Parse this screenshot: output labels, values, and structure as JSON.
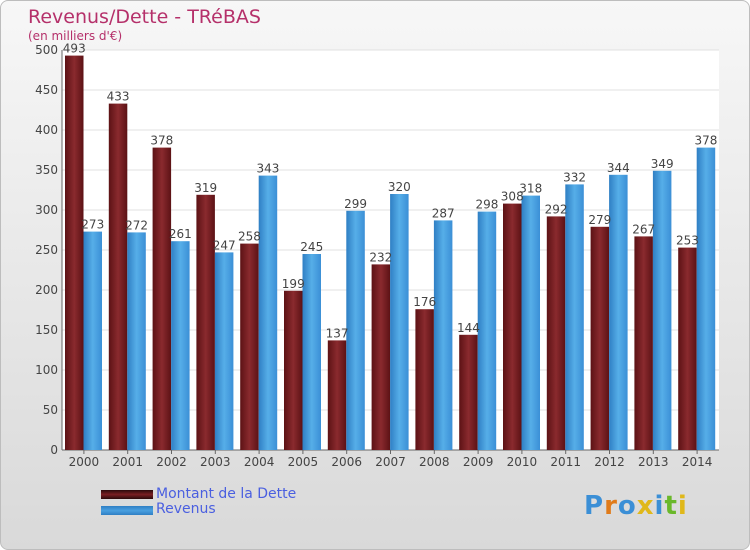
{
  "title": "Revenus/Dette - TRéBAS",
  "subtitle": "(en milliers d'€)",
  "legend": {
    "debt_label": "Montant de la Dette",
    "revenue_label": "Revenus"
  },
  "logo_text": "Proxiti",
  "colors": {
    "debt": "#7a1f22",
    "revenue": "#4aa0e0",
    "title": "#b5306a",
    "legend_text": "#4a5fe0"
  },
  "chart_data": {
    "type": "bar",
    "categories": [
      "2000",
      "2001",
      "2002",
      "2003",
      "2004",
      "2005",
      "2006",
      "2007",
      "2008",
      "2009",
      "2010",
      "2011",
      "2012",
      "2013",
      "2014"
    ],
    "series": [
      {
        "name": "Montant de la Dette",
        "values": [
          493,
          433,
          378,
          319,
          258,
          199,
          137,
          232,
          176,
          144,
          308,
          292,
          279,
          267,
          253
        ]
      },
      {
        "name": "Revenus",
        "values": [
          273,
          272,
          261,
          247,
          343,
          245,
          299,
          320,
          287,
          298,
          318,
          332,
          344,
          349,
          378
        ]
      }
    ],
    "ylim": [
      0,
      500
    ],
    "yticks": [
      0,
      50,
      100,
      150,
      200,
      250,
      300,
      350,
      400,
      450,
      500
    ],
    "grid": true,
    "legend_position": "bottom-left"
  }
}
